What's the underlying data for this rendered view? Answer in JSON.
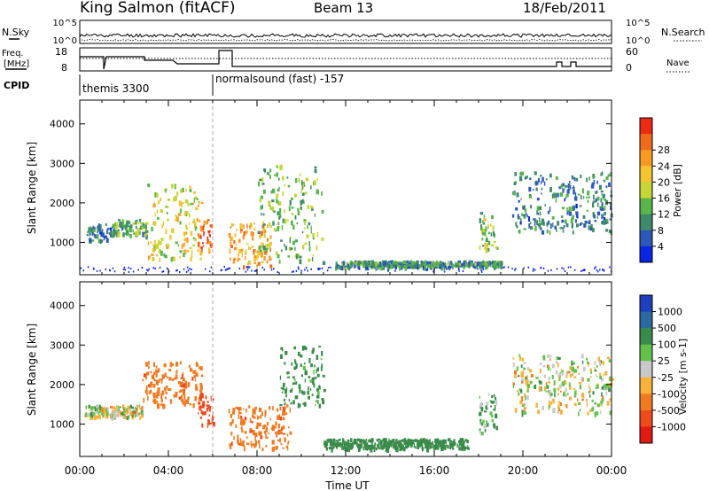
{
  "header": {
    "station": "King Salmon (fitACF)",
    "beam": "Beam 13",
    "date": "18/Feb/2011"
  },
  "summary_panels": {
    "nsky_label": "N.Sky",
    "nsearch_label": "N.Search",
    "freq_label_line1": "Freq.",
    "freq_label_line2": "[MHz]",
    "nave_label": "Nave",
    "cpid_label": "CPID",
    "noise_left_ticks": [
      "10^5",
      "10^0"
    ],
    "noise_right_ticks": [
      "10^5",
      "10^0"
    ],
    "freq_left_ticks": [
      "18",
      "8"
    ],
    "nave_right_ticks": [
      "60",
      "0"
    ],
    "cpid_segments": [
      {
        "label": "themis 3300",
        "start_hour": 0.0,
        "end_hour": 6.0
      },
      {
        "label": "normalsound (fast) -157",
        "start_hour": 6.0,
        "end_hour": 24.0
      }
    ]
  },
  "chart_data": [
    {
      "type": "heatmap",
      "name": "power",
      "title": "",
      "xlabel": "Time UT",
      "ylabel": "Slant Range [km]",
      "x_range_hours": [
        0,
        24
      ],
      "ylim": [
        180,
        4600
      ],
      "y_ticks": [
        1000,
        2000,
        3000,
        4000
      ],
      "x_ticks": [
        "00:00",
        "04:00",
        "08:00",
        "12:00",
        "16:00",
        "20:00",
        "00:00"
      ],
      "colorbar": {
        "label": "Power [dB]",
        "ticks": [
          "4",
          "8",
          "12",
          "16",
          "20",
          "24",
          "28"
        ],
        "colors": [
          "#0a24e6",
          "#2e58b8",
          "#3f8a6a",
          "#57b54a",
          "#c5d536",
          "#f4c430",
          "#f79a22",
          "#f26a1c",
          "#ee2a17"
        ]
      },
      "echo_regions": [
        {
          "t": [
            0.3,
            1.5
          ],
          "r": [
            1050,
            1500
          ],
          "level": 8
        },
        {
          "t": [
            1.5,
            3.0
          ],
          "r": [
            1200,
            1600
          ],
          "level": 12
        },
        {
          "t": [
            3.0,
            5.5
          ],
          "r": [
            600,
            2500
          ],
          "level": 18
        },
        {
          "t": [
            5.3,
            5.9
          ],
          "r": [
            800,
            1600
          ],
          "level": 26
        },
        {
          "t": [
            6.7,
            8.6
          ],
          "r": [
            400,
            1500
          ],
          "level": 22
        },
        {
          "t": [
            8.0,
            11.0
          ],
          "r": [
            500,
            3000
          ],
          "level": 12
        },
        {
          "t": [
            11.5,
            19.0
          ],
          "r": [
            400,
            550
          ],
          "level": 10
        },
        {
          "t": [
            18.0,
            18.8
          ],
          "r": [
            800,
            1800
          ],
          "level": 14
        },
        {
          "t": [
            19.5,
            24.0
          ],
          "r": [
            1300,
            2800
          ],
          "level": 8
        }
      ]
    },
    {
      "type": "heatmap",
      "name": "velocity",
      "title": "",
      "xlabel": "Time UT",
      "ylabel": "Slant Range [km]",
      "x_range_hours": [
        0,
        24
      ],
      "ylim": [
        180,
        4600
      ],
      "y_ticks": [
        1000,
        2000,
        3000,
        4000
      ],
      "x_ticks": [
        "00:00",
        "04:00",
        "08:00",
        "12:00",
        "16:00",
        "20:00",
        "00:00"
      ],
      "colorbar": {
        "label": "Velocity [m s-1]",
        "ticks": [
          "1000",
          "500",
          "100",
          "25",
          "-25",
          "-100",
          "-500",
          "-1000"
        ],
        "colors": [
          "#1f3fbf",
          "#2d6aa0",
          "#3a8a4a",
          "#62c24a",
          "#c8c8c8",
          "#f6b23a",
          "#f07a22",
          "#ee4a1c",
          "#e11a14"
        ]
      },
      "echo_regions": [
        {
          "t": [
            0.2,
            2.8
          ],
          "r": [
            1200,
            1500
          ],
          "level": 0
        },
        {
          "t": [
            2.8,
            5.5
          ],
          "r": [
            1500,
            2600
          ],
          "level": -400
        },
        {
          "t": [
            5.3,
            6.0
          ],
          "r": [
            1000,
            1800
          ],
          "level": -900
        },
        {
          "t": [
            6.7,
            9.5
          ],
          "r": [
            400,
            1500
          ],
          "level": -400
        },
        {
          "t": [
            9.0,
            11.0
          ],
          "r": [
            1500,
            3000
          ],
          "level": 200
        },
        {
          "t": [
            11.0,
            17.5
          ],
          "r": [
            400,
            650
          ],
          "level": 300
        },
        {
          "t": [
            18.0,
            18.8
          ],
          "r": [
            800,
            1800
          ],
          "level": 100
        },
        {
          "t": [
            19.5,
            24.0
          ],
          "r": [
            1300,
            2800
          ],
          "level": 0
        }
      ]
    }
  ]
}
